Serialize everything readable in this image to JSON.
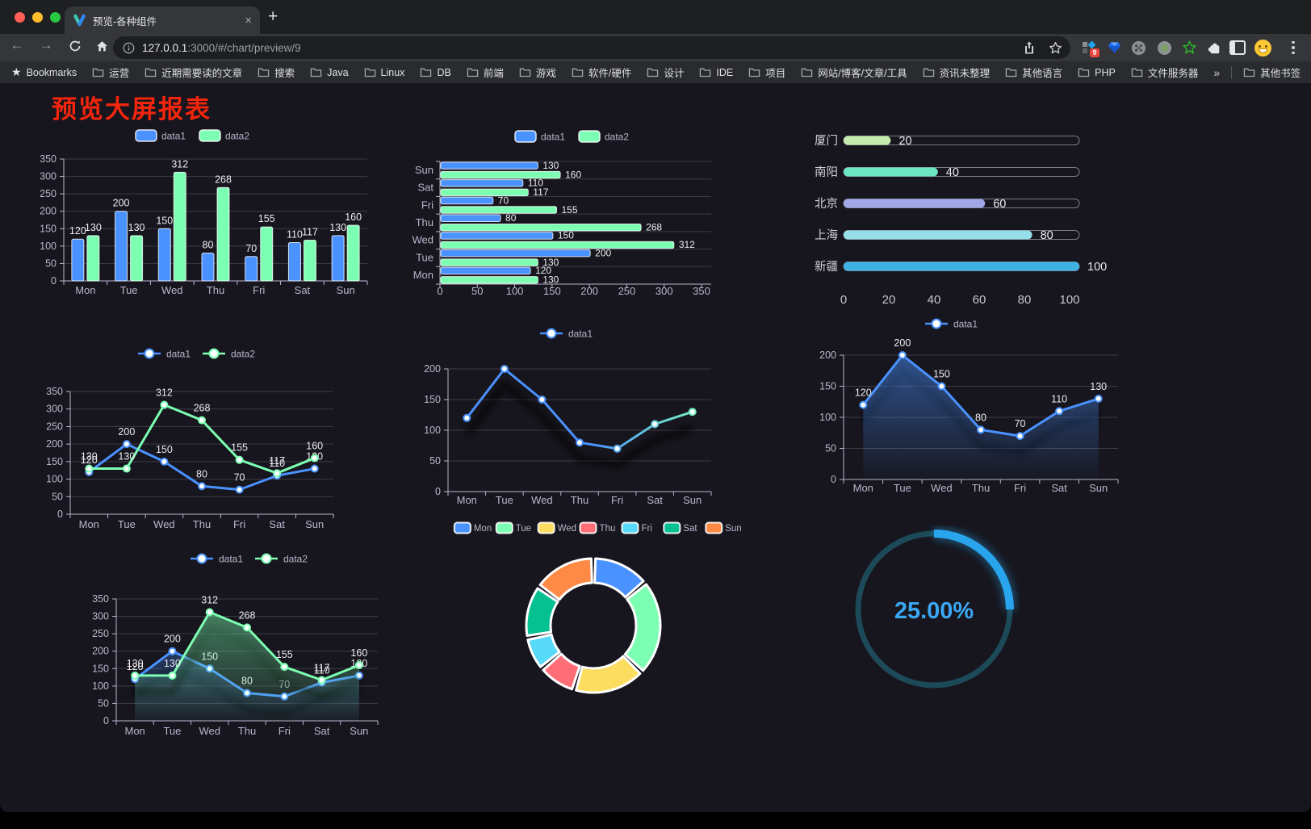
{
  "browser": {
    "tab": {
      "title": "预览-各种组件",
      "close": "×",
      "new_tab": "+"
    },
    "toolbar": {
      "url_host": "127.0.0.1",
      "url_path": ":3000/#/chart/preview/9",
      "extension_badge": "9"
    },
    "bookmarks": {
      "label": "Bookmarks",
      "folders": [
        "运营",
        "近期需要读的文章",
        "搜索",
        "Java",
        "Linux",
        "DB",
        "前端",
        "游戏",
        "软件/硬件",
        "设计",
        "IDE",
        "项目",
        "网站/博客/文章/工具",
        "资讯未整理",
        "其他语言",
        "PHP",
        "文件服务器"
      ],
      "overflow": "»",
      "other_bookmarks": "其他书签"
    }
  },
  "page": {
    "title": "预览大屏报表",
    "title_color": "#f3260d",
    "background": "#17151d"
  },
  "chart_data": [
    {
      "id": "bar-vertical",
      "type": "bar",
      "categories": [
        "Mon",
        "Tue",
        "Wed",
        "Thu",
        "Fri",
        "Sat",
        "Sun"
      ],
      "series": [
        {
          "name": "data1",
          "color": "#4992ff",
          "values": [
            120,
            200,
            150,
            80,
            70,
            110,
            130
          ]
        },
        {
          "name": "data2",
          "color": "#7cffb2",
          "values": [
            130,
            130,
            312,
            268,
            155,
            117,
            160
          ]
        }
      ],
      "ylim": [
        0,
        350
      ],
      "ytick": 50,
      "legend_position": "top",
      "grid": true,
      "value_labels": true
    },
    {
      "id": "bar-horizontal",
      "type": "bar-horizontal",
      "categories": [
        "Mon",
        "Tue",
        "Wed",
        "Thu",
        "Fri",
        "Sat",
        "Sun"
      ],
      "category_axis_note": "Sun at top, Mon at bottom",
      "series": [
        {
          "name": "data1",
          "color": "#4992ff",
          "values": [
            120,
            200,
            150,
            80,
            70,
            110,
            130
          ]
        },
        {
          "name": "data2",
          "color": "#7cffb2",
          "values": [
            130,
            130,
            312,
            268,
            155,
            117,
            160
          ]
        }
      ],
      "xlim": [
        0,
        350
      ],
      "xtick": 50,
      "legend_position": "top",
      "value_labels": true
    },
    {
      "id": "progress-bars",
      "type": "progress",
      "rows": [
        {
          "label": "厦门",
          "value": 20,
          "color": "#c4ebad"
        },
        {
          "label": "南阳",
          "value": 40,
          "color": "#6be6c1"
        },
        {
          "label": "北京",
          "value": 60,
          "color": "#a0a7e6"
        },
        {
          "label": "上海",
          "value": 80,
          "color": "#96dee8"
        },
        {
          "label": "新疆",
          "value": 100,
          "color": "#3fb1e3"
        }
      ],
      "xlim": [
        0,
        100
      ],
      "xticks": [
        0,
        20,
        40,
        60,
        80,
        100
      ]
    },
    {
      "id": "line-dual",
      "type": "line",
      "categories": [
        "Mon",
        "Tue",
        "Wed",
        "Thu",
        "Fri",
        "Sat",
        "Sun"
      ],
      "series": [
        {
          "name": "data1",
          "color": "#4992ff",
          "values": [
            120,
            200,
            150,
            80,
            70,
            110,
            130
          ]
        },
        {
          "name": "data2",
          "color": "#7cffb2",
          "values": [
            130,
            130,
            312,
            268,
            155,
            117,
            160
          ]
        }
      ],
      "ylim": [
        0,
        350
      ],
      "ytick": 50,
      "legend_position": "top",
      "value_labels": true
    },
    {
      "id": "line-gradient",
      "type": "line",
      "categories": [
        "Mon",
        "Tue",
        "Wed",
        "Thu",
        "Fri",
        "Sat",
        "Sun"
      ],
      "series": [
        {
          "name": "data1",
          "color": "#4992ff",
          "gradient_to": "#7cffb2",
          "shadow": true,
          "values": [
            120,
            200,
            150,
            80,
            70,
            110,
            130
          ]
        }
      ],
      "ylim": [
        0,
        200
      ],
      "ytick": 50,
      "legend_position": "top",
      "value_labels": false
    },
    {
      "id": "line-area",
      "type": "line",
      "categories": [
        "Mon",
        "Tue",
        "Wed",
        "Thu",
        "Fri",
        "Sat",
        "Sun"
      ],
      "series": [
        {
          "name": "data1",
          "color": "#4992ff",
          "area": true,
          "shadow": true,
          "values": [
            120,
            200,
            150,
            80,
            70,
            110,
            130
          ]
        }
      ],
      "ylim": [
        0,
        200
      ],
      "ytick": 50,
      "legend_position": "top",
      "value_labels": true
    },
    {
      "id": "line-area-dual",
      "type": "line",
      "categories": [
        "Mon",
        "Tue",
        "Wed",
        "Thu",
        "Fri",
        "Sat",
        "Sun"
      ],
      "series": [
        {
          "name": "data1",
          "color": "#4992ff",
          "area": true,
          "shadow": true,
          "values": [
            120,
            200,
            150,
            80,
            70,
            110,
            130
          ]
        },
        {
          "name": "data2",
          "color": "#7cffb2",
          "area": true,
          "shadow": true,
          "values": [
            130,
            130,
            312,
            268,
            155,
            117,
            160
          ]
        }
      ],
      "ylim": [
        0,
        350
      ],
      "ytick": 50,
      "legend_position": "top",
      "value_labels": true
    },
    {
      "id": "donut",
      "type": "pie",
      "legend_position": "top",
      "items": [
        {
          "name": "Mon",
          "value": 120,
          "color": "#4992ff"
        },
        {
          "name": "Tue",
          "value": 200,
          "color": "#7cffb2"
        },
        {
          "name": "Wed",
          "value": 150,
          "color": "#fddd60"
        },
        {
          "name": "Thu",
          "value": 80,
          "color": "#ff6e76"
        },
        {
          "name": "Fri",
          "value": 70,
          "color": "#58d9f9"
        },
        {
          "name": "Sat",
          "value": 110,
          "color": "#05c091"
        },
        {
          "name": "Sun",
          "value": 130,
          "color": "#ff8a45"
        }
      ]
    },
    {
      "id": "gauge",
      "type": "gauge",
      "value": 25,
      "label": "25.00%",
      "color": "#29a5ee",
      "track_color": "#1c4a58",
      "text_color": "#3ba7f3"
    }
  ]
}
